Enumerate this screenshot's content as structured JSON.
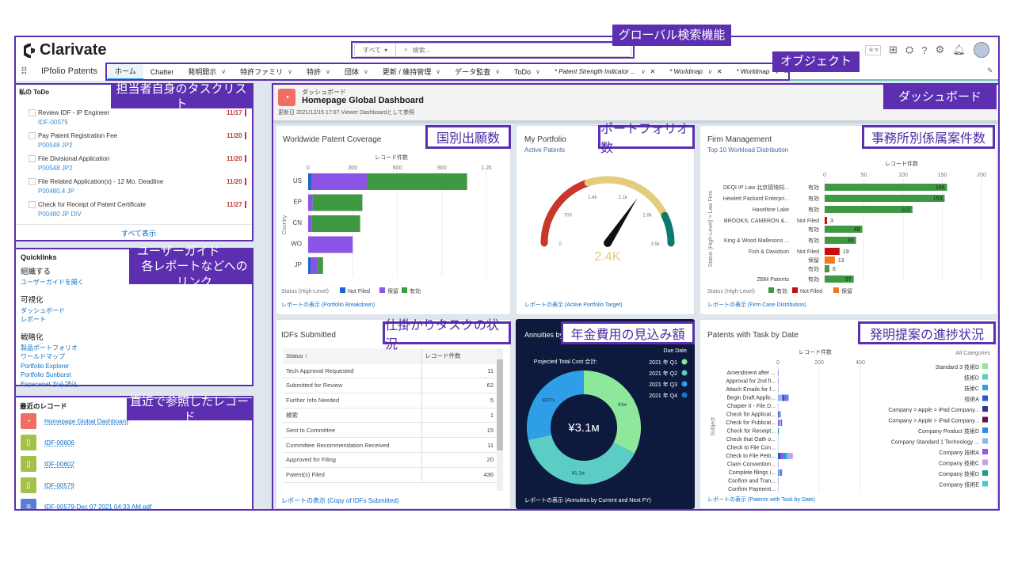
{
  "header": {
    "logo": "Clarivate",
    "app_name": "IPfolio Patents",
    "search_scope": "すべて",
    "search_placeholder": "検索..."
  },
  "nav": {
    "items": [
      {
        "label": "ホーム",
        "menu": false,
        "active": true
      },
      {
        "label": "Chatter",
        "menu": false
      },
      {
        "label": "発明開示",
        "menu": true
      },
      {
        "label": "特許ファミリ",
        "menu": true
      },
      {
        "label": "特許",
        "menu": true
      },
      {
        "label": "団体",
        "menu": true
      },
      {
        "label": "更新 / 維持管理",
        "menu": true
      },
      {
        "label": "データ監査",
        "menu": true
      },
      {
        "label": "ToDo",
        "menu": true
      }
    ],
    "tabs": [
      {
        "label": "* Patent Strength Indicator ..."
      },
      {
        "label": "* Worldmap"
      },
      {
        "label": "* Worldmap"
      }
    ]
  },
  "annotations": {
    "search": "グローバル検索機能",
    "objects": "オブジェクト",
    "tasks": "担当者自身のタスクリスト",
    "guide1": "ユーザーガイド",
    "guide2": "各レポートなどへのリンク",
    "recent": "直近で参照したレコード",
    "dashboard": "ダッシュボード",
    "coverage": "国別出願数",
    "portfolio": "ポートフォリオ数",
    "firm": "事務所別係属案件数",
    "idf": "仕掛かりタスクの状況",
    "annuities": "年金費用の見込み額",
    "tasks_by_date": "発明提案の進捗状況"
  },
  "todo": {
    "title": "私の ToDo",
    "view_all": "すべて表示",
    "items": [
      {
        "title": "Review IDF - IP Engineer",
        "ref": "IDF-00575",
        "date": "11/17"
      },
      {
        "title": "Pay Patent Registration Fee",
        "ref": "P00548 JP2",
        "date": "11/20"
      },
      {
        "title": "File Divisional Application",
        "ref": "P00548 JP2",
        "date": "11/20"
      },
      {
        "title": "File Related Application(s) - 12 Mo. Deadline",
        "ref": "P00480.4 JP",
        "date": "11/20"
      },
      {
        "title": "Check for Receipt of Patent Certificate",
        "ref": "P00480 JP DIV",
        "date": "11/27"
      }
    ]
  },
  "quicklinks": {
    "title": "Quicklinks",
    "sections": [
      {
        "heading": "組織する",
        "links": [
          "ユーザーガイドを開く"
        ]
      },
      {
        "heading": "可視化",
        "links": [
          "ダッシュボード",
          "レポート"
        ]
      },
      {
        "heading": "戦略化",
        "links": [
          "製品ポートフォリオ",
          "ワールドマップ",
          "Portfolio Explorer",
          "Portfolio Sunburst",
          "Espacenet から読込"
        ]
      }
    ]
  },
  "recent": {
    "title": "最近のレコード",
    "items": [
      {
        "label": "Homepage Global Dashboard",
        "icon": "dashboard-icon",
        "color": "#ef6e64"
      },
      {
        "label": "IDF-00606",
        "icon": "idf-icon",
        "color": "#a4c14a"
      },
      {
        "label": "IDF-00602",
        "icon": "idf-icon",
        "color": "#a4c14a"
      },
      {
        "label": "IDF-00579",
        "icon": "idf-icon",
        "color": "#a4c14a"
      },
      {
        "label": "IDF-00579-Dec 07 2021 04:33 AM.pdf",
        "icon": "file-icon",
        "color": "#5a7fd6"
      }
    ]
  },
  "dashboard": {
    "type_label": "ダッシュボード",
    "title": "Homepage Global Dashboard",
    "meta": "更新日 2021/12/15 17:07·Viewer Dashboardとして参照"
  },
  "chart_data": [
    {
      "id": "coverage",
      "type": "bar",
      "title": "Worldwide Patent Coverage",
      "xlabel": "レコード件数",
      "ylabel": "Country",
      "categories": [
        "US",
        "EP",
        "CN",
        "WO",
        "JP"
      ],
      "xlim": [
        0,
        1200
      ],
      "ticks": [
        "0",
        "300",
        "600",
        "900",
        "1.2k"
      ],
      "tick_values": [
        0,
        300,
        600,
        900,
        1200
      ],
      "series": [
        {
          "name": "Not Filed",
          "color": "#1a66c9",
          "values": [
            25,
            0,
            0,
            0,
            20
          ]
        },
        {
          "name": "保留",
          "color": "#8a55e6",
          "values": [
            370,
            30,
            25,
            300,
            45
          ]
        },
        {
          "name": "有効",
          "color": "#3f9842",
          "values": [
            675,
            335,
            325,
            0,
            35
          ]
        }
      ],
      "legend_title": "Status (High-Level)",
      "footer": "レポートの表示 (Portfolio Breakdown)"
    },
    {
      "id": "portfolio",
      "type": "gauge",
      "title": "My Portfolio",
      "subtitle": "Active Patents",
      "value": 2400,
      "value_label": "2.4K",
      "range": [
        0,
        3500
      ],
      "ticks": [
        "0",
        "700",
        "1.4k",
        "2.1k",
        "2.8k",
        "3.5k"
      ],
      "bands": [
        {
          "to": 1400,
          "color": "#c9372c"
        },
        {
          "to": 3000,
          "color": "#e3cc7d"
        },
        {
          "to": 3500,
          "color": "#0b7a6c"
        }
      ],
      "footer": "レポートの表示 (Active Portfolio Target)"
    },
    {
      "id": "firm",
      "type": "bar",
      "title": "Firm Management",
      "subtitle": "Top 10 Workload Distribution",
      "xlabel": "レコード件数",
      "ylabel": "Status (High-Level) > Law Firm",
      "xlim": [
        0,
        200
      ],
      "ticks": [
        "0",
        "50",
        "100",
        "150",
        "200"
      ],
      "tick_values": [
        0,
        50,
        100,
        150,
        200
      ],
      "rows": [
        {
          "firm": "DEQI IP Law 北京德琦知...",
          "status": "有効",
          "value": 156
        },
        {
          "firm": "Hewlett Packard Enterpri...",
          "status": "有効",
          "value": 153
        },
        {
          "firm": "Haseltine Lake",
          "status": "有効",
          "value": 112
        },
        {
          "firm": "BROOKS, CAMERON &...",
          "status": "Not Filed",
          "value": 3
        },
        {
          "firm": "",
          "status": "有効",
          "value": 48
        },
        {
          "firm": "King & Wood Mallesons ...",
          "status": "有効",
          "value": 40
        },
        {
          "firm": "Fish & Davidson",
          "status": "Not Filed",
          "value": 19
        },
        {
          "firm": "",
          "status": "保留",
          "value": 13
        },
        {
          "firm": "",
          "status": "有効",
          "value": 6
        },
        {
          "firm": "ZBM Patents",
          "status": "有効",
          "value": 37
        }
      ],
      "legend_title": "Status (High-Level)",
      "legend": [
        {
          "name": "有効",
          "color": "#3f9842"
        },
        {
          "name": "Not Filed",
          "color": "#c50f0f"
        },
        {
          "name": "保留",
          "color": "#f4761f"
        }
      ],
      "footer": "レポートの表示 (Firm Case Distribution)"
    },
    {
      "id": "idf",
      "type": "table",
      "title": "IDFs Submitted",
      "columns": [
        "Status ↑",
        "レコード件数"
      ],
      "rows": [
        [
          "Tech Approval Requested",
          "11"
        ],
        [
          "Submitted for Review",
          "62"
        ],
        [
          "Further Info Needed",
          "5"
        ],
        [
          "検索",
          "1"
        ],
        [
          "Sent to Committee",
          "15"
        ],
        [
          "Committee Recommendation Received",
          "11"
        ],
        [
          "Approved for Filing",
          "20"
        ],
        [
          "Patent(s) Filed",
          "436"
        ]
      ],
      "footer": "レポートの表示 (Copy of IDFs Submitted)"
    },
    {
      "id": "annuities",
      "type": "pie",
      "title": "Annuities by Current and Next FY",
      "subtitle": "Projected Total Cost 合計:",
      "total_label": "¥3.1м",
      "legend_title": "Due Date",
      "slices": [
        {
          "name": "2021 年 Q1",
          "value": 1000000,
          "label": "¥1м",
          "color": "#8ee89b"
        },
        {
          "name": "2021 年 Q2",
          "value": 1200000,
          "label": "¥1.2м",
          "color": "#5ccdc4"
        },
        {
          "name": "2021 年 Q3",
          "value": 877000,
          "label": "¥877к",
          "color": "#2e9ee6"
        },
        {
          "name": "2021 年 Q4",
          "value": 0,
          "label": "",
          "color": "#1f6fd1"
        }
      ],
      "footer": "レポートの表示 (Annuities by Current and Next FY)"
    },
    {
      "id": "tasks",
      "type": "bar",
      "title": "Patents with Task by Date",
      "xlabel": "レコード件数",
      "ylabel": "Subject",
      "xlim": [
        0,
        400
      ],
      "ticks": [
        "0",
        "200",
        "400"
      ],
      "tick_values": [
        0,
        200,
        400
      ],
      "categories": [
        "Amendment after ...",
        "Approval for 2nd fi...",
        "Attach Emails for f...",
        "Begin Draft Applic...",
        "Chapter II - File D...",
        "Check for Applicat...",
        "Check for Publicat...",
        "Check for Receipt...",
        "Check that Oath o...",
        "Check to File Con...",
        "Check to File Petit...",
        "Claim Convention...",
        "Complete filings i...",
        "Confirm and Tran...",
        "Confirm Payment..."
      ],
      "values": [
        2,
        2,
        2,
        52,
        2,
        16,
        20,
        5,
        2,
        2,
        72,
        2,
        20,
        3,
        2
      ],
      "legend_title": "All Categories",
      "legend": [
        {
          "name": "Standard 3 技術D",
          "color": "#8ee89b"
        },
        {
          "name": "技術D",
          "color": "#5ccdc4"
        },
        {
          "name": "技術C",
          "color": "#2e9ee6"
        },
        {
          "name": "技術A",
          "color": "#1f5cc9"
        },
        {
          "name": "Company > Apple > iPad Company...",
          "color": "#3b2f8f"
        },
        {
          "name": "Company > Apple > iPad Company...",
          "color": "#6b0f4a"
        },
        {
          "name": "Company Product 技術D",
          "color": "#2b8ce8"
        },
        {
          "name": "Company Standard 1 Technology ...",
          "color": "#8ab9ec"
        },
        {
          "name": "Company 技術A",
          "color": "#9e53e6"
        },
        {
          "name": "Company 技術C",
          "color": "#c79ef0"
        },
        {
          "name": "Company 技術D",
          "color": "#1f9c8c"
        },
        {
          "name": "Company 技術E",
          "color": "#45ccc4"
        }
      ],
      "footer": "レポートの表示 (Patents with Task by Date)"
    }
  ]
}
